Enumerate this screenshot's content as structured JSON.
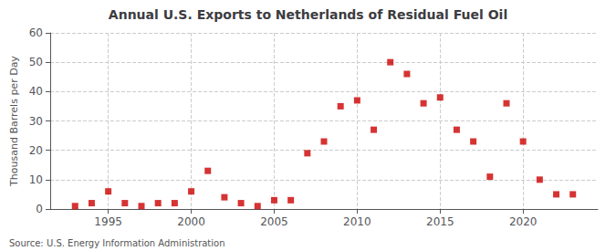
{
  "chart_data": {
    "type": "scatter",
    "title": "Annual U.S. Exports to Netherlands of Residual Fuel Oil",
    "y_label": "Thousand Barrels per Day",
    "source": "Source: U.S. Energy Information Administration",
    "x": [
      1993,
      1994,
      1995,
      1996,
      1997,
      1998,
      1999,
      2000,
      2001,
      2002,
      2003,
      2004,
      2005,
      2006,
      2007,
      2008,
      2009,
      2010,
      2011,
      2012,
      2013,
      2014,
      2015,
      2016,
      2017,
      2018,
      2019,
      2020,
      2021,
      2022,
      2023
    ],
    "values": [
      1,
      2,
      6,
      2,
      1,
      2,
      2,
      6,
      13,
      4,
      2,
      1,
      3,
      3,
      19,
      23,
      35,
      37,
      27,
      50,
      46,
      36,
      38,
      27,
      23,
      11,
      36,
      23,
      10,
      5,
      5
    ],
    "color": "#cc0000",
    "marker": "square",
    "xlim": [
      1991.5,
      2024.5
    ],
    "xticks": [
      1995,
      2000,
      2005,
      2010,
      2015,
      2020
    ],
    "ylim": [
      0,
      60
    ],
    "yticks": [
      0,
      10,
      20,
      30,
      40,
      50,
      60
    ],
    "grid": true
  }
}
